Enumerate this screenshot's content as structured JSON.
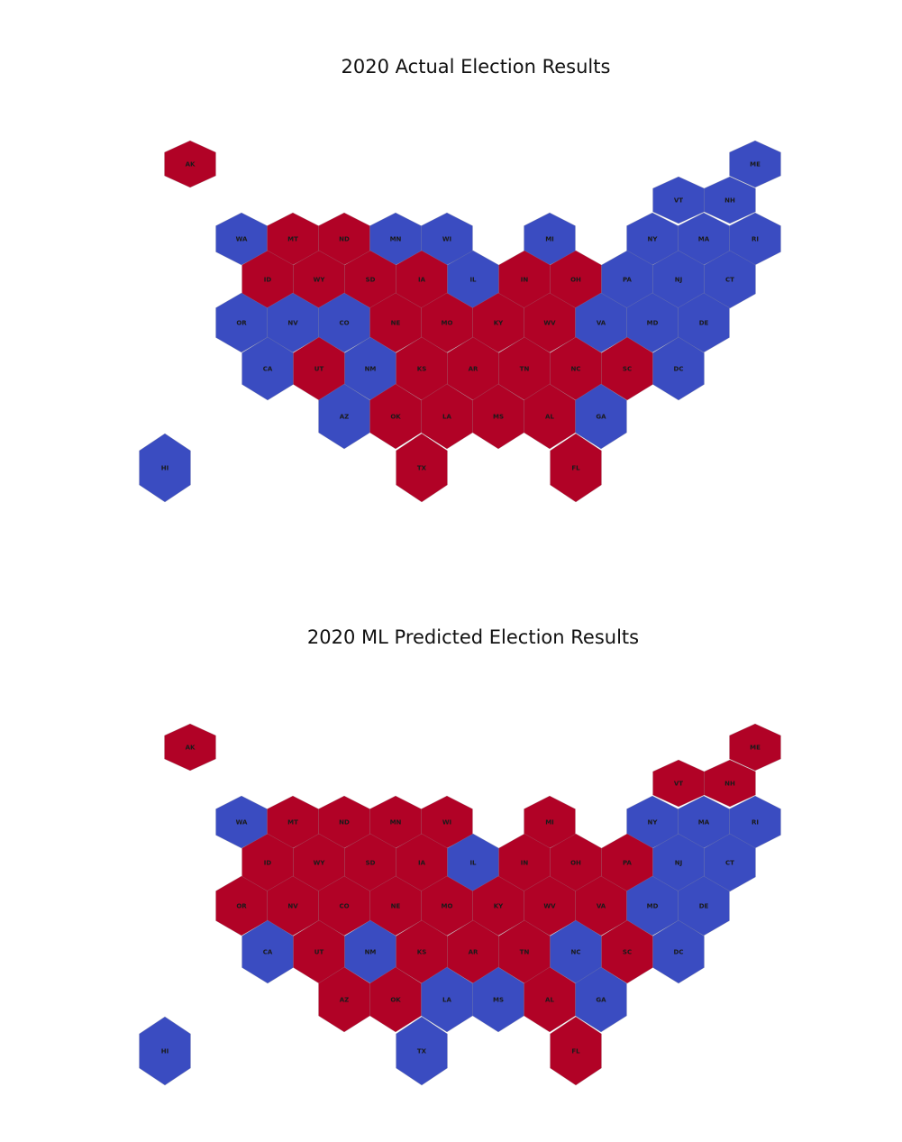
{
  "colors": {
    "dem": "#3a4cc1",
    "rep": "#b10226"
  },
  "maps": [
    {
      "title": "2020 Actual Election Results",
      "states": [
        {
          "abbr": "AK",
          "winner": "rep"
        },
        {
          "abbr": "ME",
          "winner": "dem"
        },
        {
          "abbr": "VT",
          "winner": "dem"
        },
        {
          "abbr": "NH",
          "winner": "dem"
        },
        {
          "abbr": "WA",
          "winner": "dem"
        },
        {
          "abbr": "MT",
          "winner": "rep"
        },
        {
          "abbr": "ND",
          "winner": "rep"
        },
        {
          "abbr": "MN",
          "winner": "dem"
        },
        {
          "abbr": "WI",
          "winner": "dem"
        },
        {
          "abbr": "MI",
          "winner": "dem"
        },
        {
          "abbr": "NY",
          "winner": "dem"
        },
        {
          "abbr": "MA",
          "winner": "dem"
        },
        {
          "abbr": "RI",
          "winner": "dem"
        },
        {
          "abbr": "ID",
          "winner": "rep"
        },
        {
          "abbr": "WY",
          "winner": "rep"
        },
        {
          "abbr": "SD",
          "winner": "rep"
        },
        {
          "abbr": "IA",
          "winner": "rep"
        },
        {
          "abbr": "IL",
          "winner": "dem"
        },
        {
          "abbr": "IN",
          "winner": "rep"
        },
        {
          "abbr": "OH",
          "winner": "rep"
        },
        {
          "abbr": "PA",
          "winner": "dem"
        },
        {
          "abbr": "NJ",
          "winner": "dem"
        },
        {
          "abbr": "CT",
          "winner": "dem"
        },
        {
          "abbr": "OR",
          "winner": "dem"
        },
        {
          "abbr": "NV",
          "winner": "dem"
        },
        {
          "abbr": "CO",
          "winner": "dem"
        },
        {
          "abbr": "NE",
          "winner": "rep"
        },
        {
          "abbr": "MO",
          "winner": "rep"
        },
        {
          "abbr": "KY",
          "winner": "rep"
        },
        {
          "abbr": "WV",
          "winner": "rep"
        },
        {
          "abbr": "VA",
          "winner": "dem"
        },
        {
          "abbr": "MD",
          "winner": "dem"
        },
        {
          "abbr": "DE",
          "winner": "dem"
        },
        {
          "abbr": "CA",
          "winner": "dem"
        },
        {
          "abbr": "UT",
          "winner": "rep"
        },
        {
          "abbr": "NM",
          "winner": "dem"
        },
        {
          "abbr": "KS",
          "winner": "rep"
        },
        {
          "abbr": "AR",
          "winner": "rep"
        },
        {
          "abbr": "TN",
          "winner": "rep"
        },
        {
          "abbr": "NC",
          "winner": "rep"
        },
        {
          "abbr": "SC",
          "winner": "rep"
        },
        {
          "abbr": "DC",
          "winner": "dem"
        },
        {
          "abbr": "AZ",
          "winner": "dem"
        },
        {
          "abbr": "OK",
          "winner": "rep"
        },
        {
          "abbr": "LA",
          "winner": "rep"
        },
        {
          "abbr": "MS",
          "winner": "rep"
        },
        {
          "abbr": "AL",
          "winner": "rep"
        },
        {
          "abbr": "GA",
          "winner": "dem"
        },
        {
          "abbr": "HI",
          "winner": "dem"
        },
        {
          "abbr": "TX",
          "winner": "rep"
        },
        {
          "abbr": "FL",
          "winner": "rep"
        }
      ]
    },
    {
      "title": "2020 ML Predicted Election Results",
      "states": [
        {
          "abbr": "AK",
          "winner": "rep"
        },
        {
          "abbr": "ME",
          "winner": "rep"
        },
        {
          "abbr": "VT",
          "winner": "rep"
        },
        {
          "abbr": "NH",
          "winner": "rep"
        },
        {
          "abbr": "WA",
          "winner": "dem"
        },
        {
          "abbr": "MT",
          "winner": "rep"
        },
        {
          "abbr": "ND",
          "winner": "rep"
        },
        {
          "abbr": "MN",
          "winner": "rep"
        },
        {
          "abbr": "WI",
          "winner": "rep"
        },
        {
          "abbr": "MI",
          "winner": "rep"
        },
        {
          "abbr": "NY",
          "winner": "dem"
        },
        {
          "abbr": "MA",
          "winner": "dem"
        },
        {
          "abbr": "RI",
          "winner": "dem"
        },
        {
          "abbr": "ID",
          "winner": "rep"
        },
        {
          "abbr": "WY",
          "winner": "rep"
        },
        {
          "abbr": "SD",
          "winner": "rep"
        },
        {
          "abbr": "IA",
          "winner": "rep"
        },
        {
          "abbr": "IL",
          "winner": "dem"
        },
        {
          "abbr": "IN",
          "winner": "rep"
        },
        {
          "abbr": "OH",
          "winner": "rep"
        },
        {
          "abbr": "PA",
          "winner": "rep"
        },
        {
          "abbr": "NJ",
          "winner": "dem"
        },
        {
          "abbr": "CT",
          "winner": "dem"
        },
        {
          "abbr": "OR",
          "winner": "rep"
        },
        {
          "abbr": "NV",
          "winner": "rep"
        },
        {
          "abbr": "CO",
          "winner": "rep"
        },
        {
          "abbr": "NE",
          "winner": "rep"
        },
        {
          "abbr": "MO",
          "winner": "rep"
        },
        {
          "abbr": "KY",
          "winner": "rep"
        },
        {
          "abbr": "WV",
          "winner": "rep"
        },
        {
          "abbr": "VA",
          "winner": "rep"
        },
        {
          "abbr": "MD",
          "winner": "dem"
        },
        {
          "abbr": "DE",
          "winner": "dem"
        },
        {
          "abbr": "CA",
          "winner": "dem"
        },
        {
          "abbr": "UT",
          "winner": "rep"
        },
        {
          "abbr": "NM",
          "winner": "dem"
        },
        {
          "abbr": "KS",
          "winner": "rep"
        },
        {
          "abbr": "AR",
          "winner": "rep"
        },
        {
          "abbr": "TN",
          "winner": "rep"
        },
        {
          "abbr": "NC",
          "winner": "dem"
        },
        {
          "abbr": "SC",
          "winner": "rep"
        },
        {
          "abbr": "DC",
          "winner": "dem"
        },
        {
          "abbr": "AZ",
          "winner": "rep"
        },
        {
          "abbr": "OK",
          "winner": "rep"
        },
        {
          "abbr": "LA",
          "winner": "dem"
        },
        {
          "abbr": "MS",
          "winner": "dem"
        },
        {
          "abbr": "AL",
          "winner": "rep"
        },
        {
          "abbr": "GA",
          "winner": "dem"
        },
        {
          "abbr": "HI",
          "winner": "dem"
        },
        {
          "abbr": "TX",
          "winner": "dem"
        },
        {
          "abbr": "FL",
          "winner": "rep"
        }
      ]
    }
  ]
}
